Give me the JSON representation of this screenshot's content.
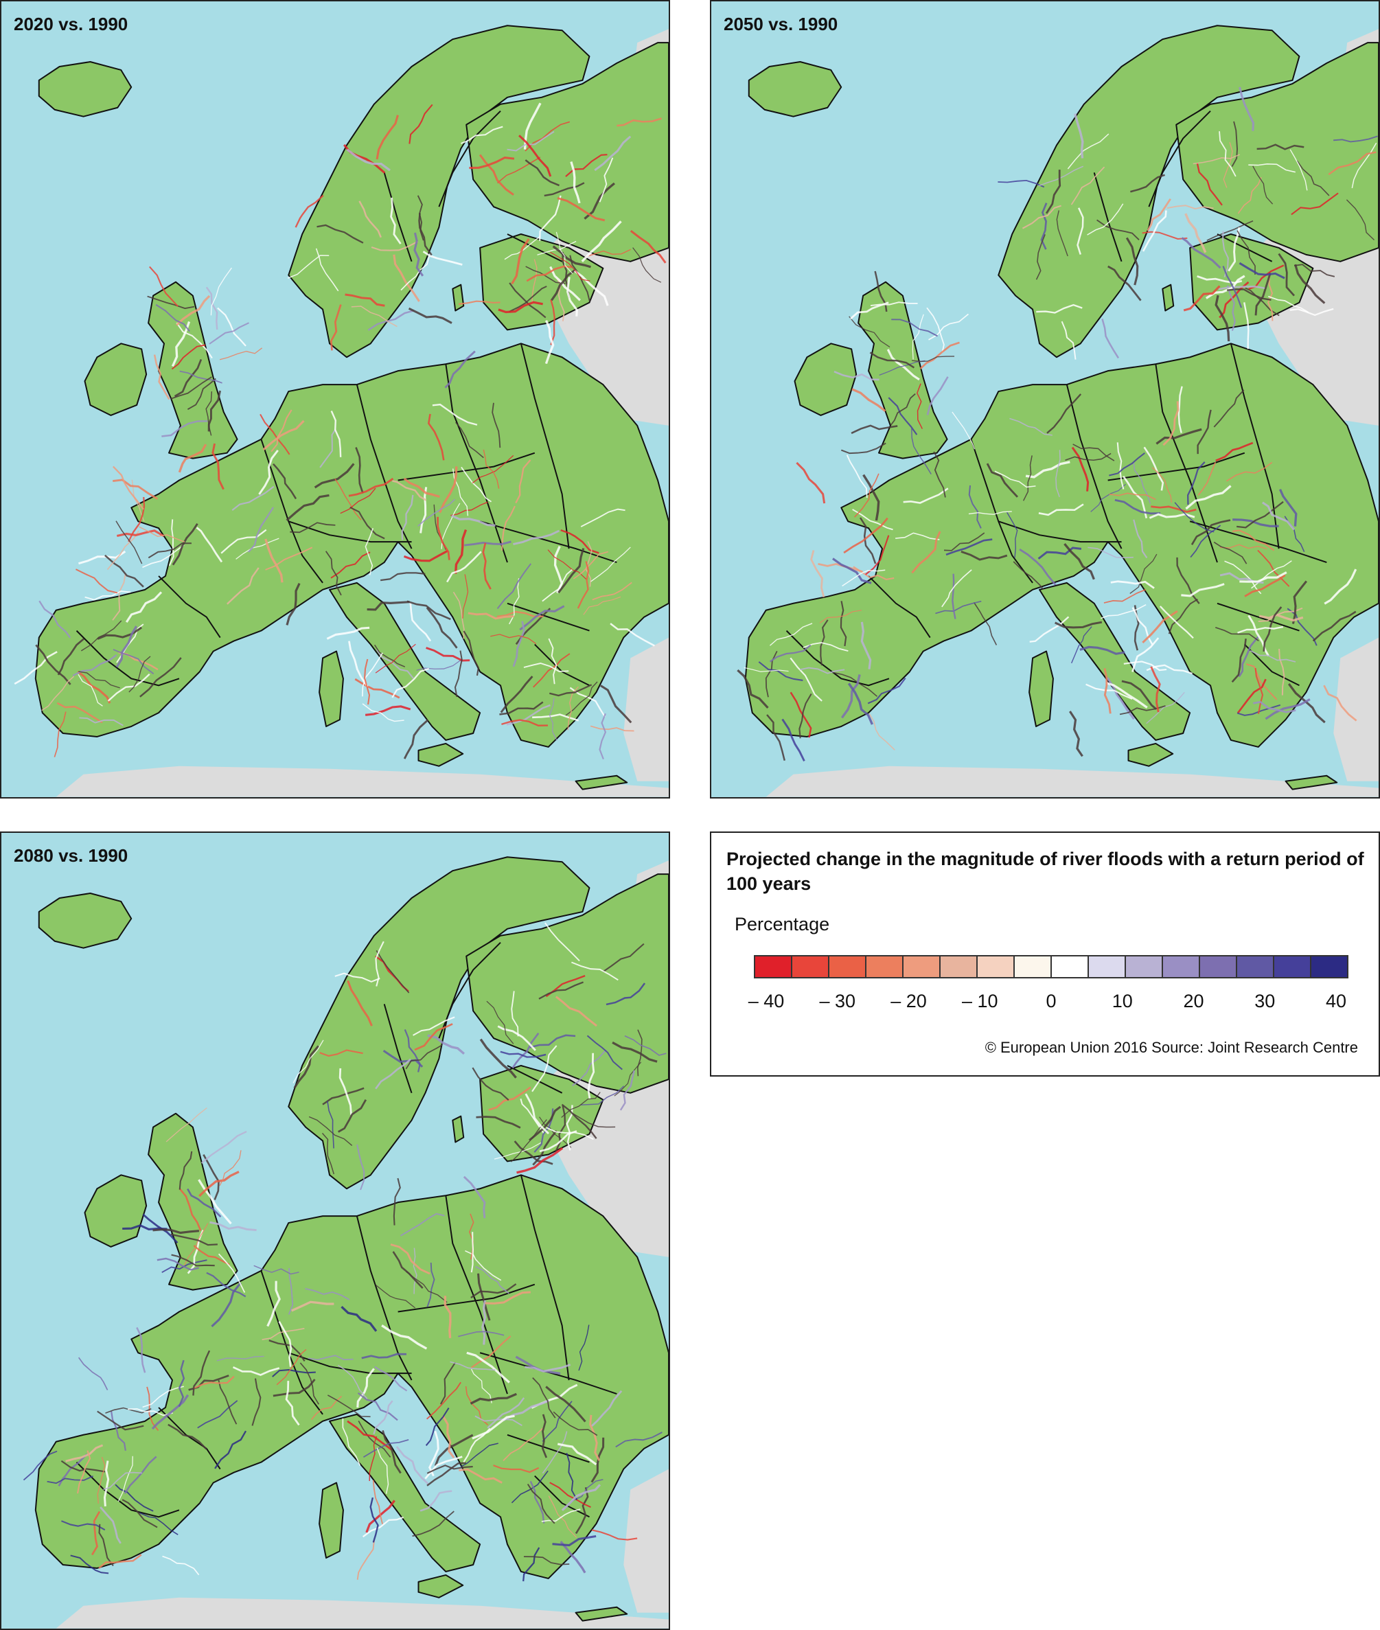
{
  "colors": {
    "sea": "#a8dde6",
    "land": "#8cc766",
    "outside_area": "#dcdcdc",
    "border": "#111111",
    "river_neutral": "#4a3a3a"
  },
  "maps": [
    {
      "id": "2020",
      "title": "2020 vs. 1990",
      "dominant_tendency": "decrease"
    },
    {
      "id": "2050",
      "title": "2050 vs. 1990",
      "dominant_tendency": "mixed"
    },
    {
      "id": "2080",
      "title": "2080 vs. 1990",
      "dominant_tendency": "increase"
    }
  ],
  "legend": {
    "title": "Projected change in the magnitude of river floods with a return period of 100 years",
    "unit_label": "Percentage",
    "bins": [
      "#e0202a",
      "#e8453a",
      "#ea6146",
      "#ec7f5e",
      "#ee9c7e",
      "#e8b49e",
      "#f5d2c0",
      "#fcf6ec",
      "#ffffff",
      "#dcdaee",
      "#b9b2d4",
      "#9a8fc4",
      "#7d6fb0",
      "#6059a4",
      "#45409a",
      "#2c2b84"
    ],
    "tick_labels": [
      {
        "text": "– 40",
        "value": -40
      },
      {
        "text": "– 30",
        "value": -30
      },
      {
        "text": "– 20",
        "value": -20
      },
      {
        "text": "– 10",
        "value": -10
      },
      {
        "text": "0",
        "value": 0
      },
      {
        "text": "10",
        "value": 10
      },
      {
        "text": "20",
        "value": 20
      },
      {
        "text": "30",
        "value": 30
      },
      {
        "text": "40",
        "value": 40
      }
    ],
    "source": "© European Union 2016 Source: Joint Research Centre"
  }
}
